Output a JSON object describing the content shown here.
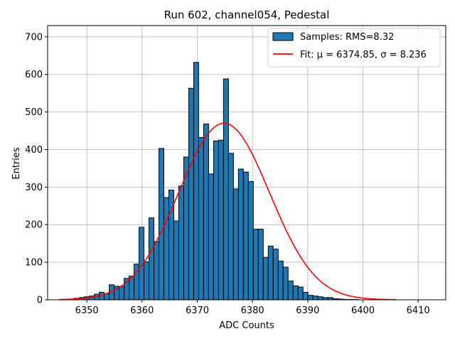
{
  "chart_data": {
    "type": "bar",
    "title": "Run 602, channel054, Pedestal",
    "xlabel": "ADC Counts",
    "ylabel": "Entries",
    "xlim": [
      6342.9,
      6415.0
    ],
    "ylim": [
      0,
      730
    ],
    "xticks": [
      6350,
      6360,
      6370,
      6380,
      6390,
      6400,
      6410
    ],
    "yticks": [
      0,
      100,
      200,
      300,
      400,
      500,
      600,
      700
    ],
    "grid": true,
    "legend_position": "top-right",
    "bar_color": "#1f77b4",
    "fit_color": "#ff0000",
    "bin_width": 0.9,
    "series": [
      {
        "name": "Samples: RMS=8.32",
        "kind": "histogram",
        "x": [
          6345.5,
          6346.4,
          6347.3,
          6348.2,
          6349.1,
          6350.0,
          6350.9,
          6351.8,
          6352.7,
          6353.6,
          6354.5,
          6355.4,
          6356.3,
          6357.2,
          6358.1,
          6359.0,
          6359.9,
          6360.8,
          6361.7,
          6362.6,
          6363.5,
          6364.4,
          6365.3,
          6366.2,
          6367.1,
          6368.0,
          6368.9,
          6369.8,
          6370.7,
          6371.6,
          6372.5,
          6373.4,
          6374.3,
          6375.2,
          6376.1,
          6377.0,
          6377.9,
          6378.8,
          6379.7,
          6380.6,
          6381.5,
          6382.4,
          6383.3,
          6384.2,
          6385.1,
          6386.0,
          6386.9,
          6387.8,
          6388.7,
          6389.6,
          6390.5,
          6391.4,
          6392.3,
          6393.2,
          6394.1,
          6395.0,
          6395.9,
          6396.8,
          6397.7,
          6398.6,
          6399.5,
          6400.4,
          6401.3,
          6402.2,
          6403.1,
          6404.0,
          6404.9
        ],
        "values": [
          1,
          1,
          2,
          4,
          6,
          8,
          10,
          15,
          20,
          16,
          40,
          36,
          35,
          57,
          63,
          95,
          193,
          101,
          218,
          155,
          403,
          272,
          292,
          210,
          303,
          380,
          563,
          632,
          432,
          468,
          335,
          423,
          425,
          588,
          390,
          295,
          348,
          340,
          315,
          188,
          188,
          113,
          143,
          135,
          103,
          87,
          50,
          37,
          34,
          20,
          12,
          10,
          8,
          6,
          6,
          3,
          2,
          1,
          1,
          1,
          0,
          0,
          0,
          0,
          0,
          0,
          0
        ]
      },
      {
        "name": "Fit: μ = 6374.85, σ = 8.236",
        "kind": "gaussian",
        "mu": 6374.85,
        "sigma": 8.236,
        "amplitude": 470,
        "x_range": [
          6345.0,
          6406.0
        ]
      }
    ]
  }
}
